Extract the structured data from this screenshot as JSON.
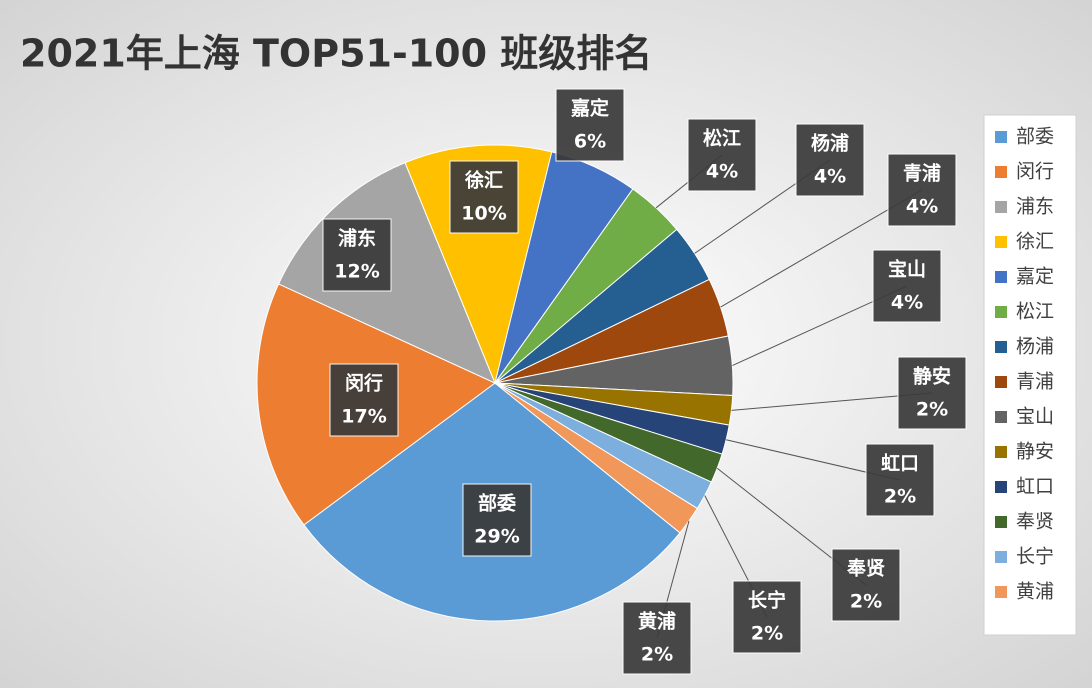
{
  "chart_data": {
    "type": "pie",
    "title": "2021年上海 TOP51-100 班级排名",
    "categories": [
      "部委",
      "闵行",
      "浦东",
      "徐汇",
      "嘉定",
      "松江",
      "杨浦",
      "青浦",
      "宝山",
      "静安",
      "虹口",
      "奉贤",
      "长宁",
      "黄浦"
    ],
    "values": [
      29,
      17,
      12,
      10,
      6,
      4,
      4,
      4,
      4,
      2,
      2,
      2,
      2,
      2
    ],
    "value_labels": [
      "29%",
      "17%",
      "12%",
      "10%",
      "6%",
      "4%",
      "4%",
      "4%",
      "4%",
      "2%",
      "2%",
      "2%",
      "2%",
      "2%"
    ],
    "colors": [
      "#5b9bd5",
      "#ed7d31",
      "#a5a5a5",
      "#ffc000",
      "#4472c4",
      "#70ad47",
      "#255e91",
      "#9e480e",
      "#636363",
      "#997300",
      "#264478",
      "#43682b",
      "#7cafdd",
      "#f1975a"
    ],
    "legend": "right"
  }
}
